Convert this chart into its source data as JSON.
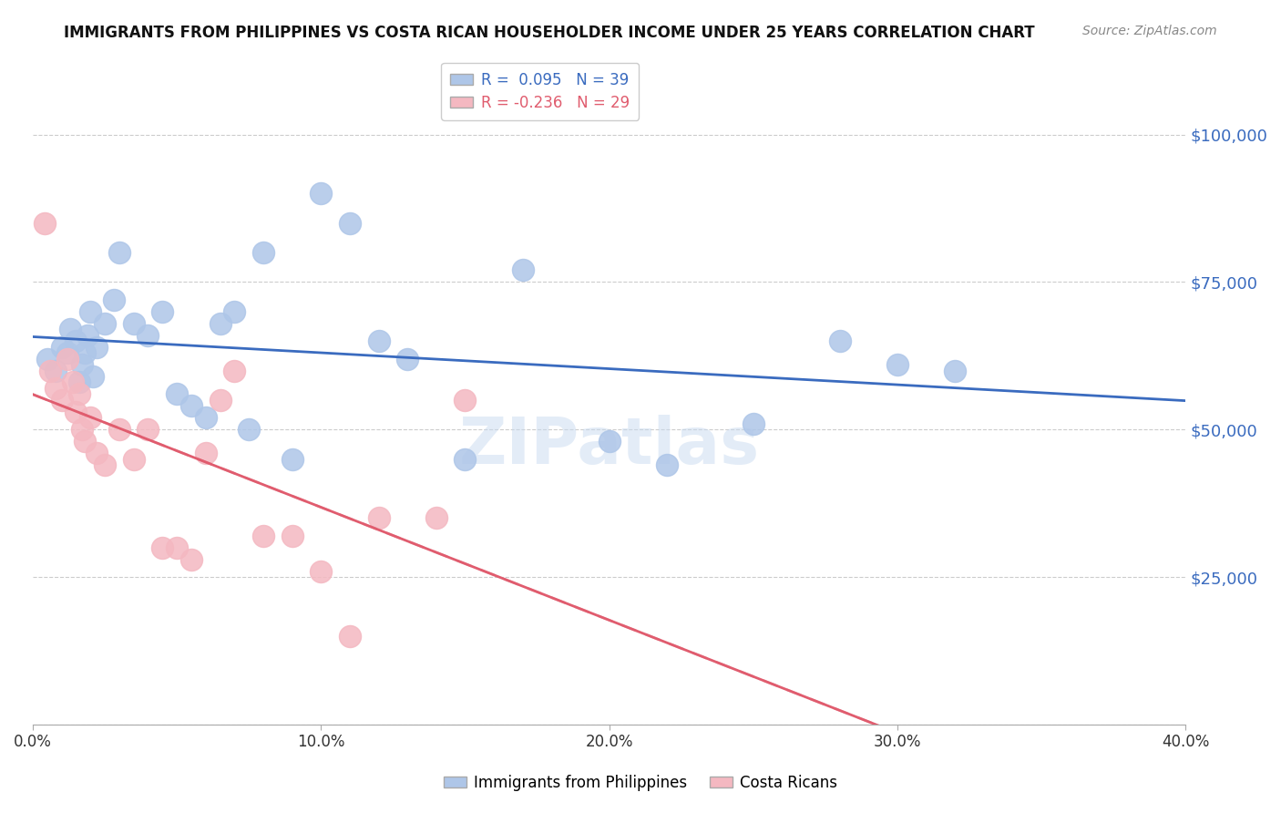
{
  "title": "IMMIGRANTS FROM PHILIPPINES VS COSTA RICAN HOUSEHOLDER INCOME UNDER 25 YEARS CORRELATION CHART",
  "source": "Source: ZipAtlas.com",
  "xlabel_min": "0.0%",
  "xlabel_max": "40.0%",
  "ylabel_ticks": [
    0,
    25000,
    50000,
    75000,
    100000
  ],
  "ylabel_labels": [
    "",
    "$25,000",
    "$50,000",
    "$75,000",
    "$100,000"
  ],
  "xmin": 0.0,
  "xmax": 0.4,
  "ymin": 0,
  "ymax": 105000,
  "blue_R": 0.095,
  "blue_N": 39,
  "pink_R": -0.236,
  "pink_N": 29,
  "legend_label_blue": "Immigrants from Philippines",
  "legend_label_pink": "Costa Ricans",
  "blue_color": "#aec6e8",
  "blue_line_color": "#3a6bbf",
  "pink_color": "#f4b8c1",
  "pink_line_color": "#e05c6e",
  "pink_dash_color": "#e8b4c0",
  "watermark": "ZIPatlas",
  "blue_scatter_x": [
    0.005,
    0.008,
    0.01,
    0.012,
    0.013,
    0.015,
    0.016,
    0.017,
    0.018,
    0.019,
    0.02,
    0.021,
    0.022,
    0.025,
    0.028,
    0.03,
    0.035,
    0.04,
    0.045,
    0.05,
    0.055,
    0.06,
    0.065,
    0.07,
    0.075,
    0.08,
    0.09,
    0.1,
    0.11,
    0.12,
    0.13,
    0.15,
    0.17,
    0.2,
    0.22,
    0.25,
    0.28,
    0.3,
    0.32
  ],
  "blue_scatter_y": [
    62000,
    60000,
    64000,
    63000,
    67000,
    65000,
    58000,
    61000,
    63000,
    66000,
    70000,
    59000,
    64000,
    68000,
    72000,
    80000,
    68000,
    66000,
    70000,
    56000,
    54000,
    52000,
    68000,
    70000,
    50000,
    80000,
    45000,
    90000,
    85000,
    65000,
    62000,
    45000,
    77000,
    48000,
    44000,
    51000,
    65000,
    61000,
    60000
  ],
  "pink_scatter_x": [
    0.004,
    0.006,
    0.008,
    0.01,
    0.012,
    0.014,
    0.015,
    0.016,
    0.017,
    0.018,
    0.02,
    0.022,
    0.025,
    0.03,
    0.035,
    0.04,
    0.045,
    0.05,
    0.055,
    0.06,
    0.065,
    0.07,
    0.08,
    0.09,
    0.1,
    0.11,
    0.12,
    0.14,
    0.15
  ],
  "pink_scatter_y": [
    85000,
    60000,
    57000,
    55000,
    62000,
    58000,
    53000,
    56000,
    50000,
    48000,
    52000,
    46000,
    44000,
    50000,
    45000,
    50000,
    30000,
    30000,
    28000,
    46000,
    55000,
    60000,
    32000,
    32000,
    26000,
    15000,
    35000,
    35000,
    55000
  ]
}
